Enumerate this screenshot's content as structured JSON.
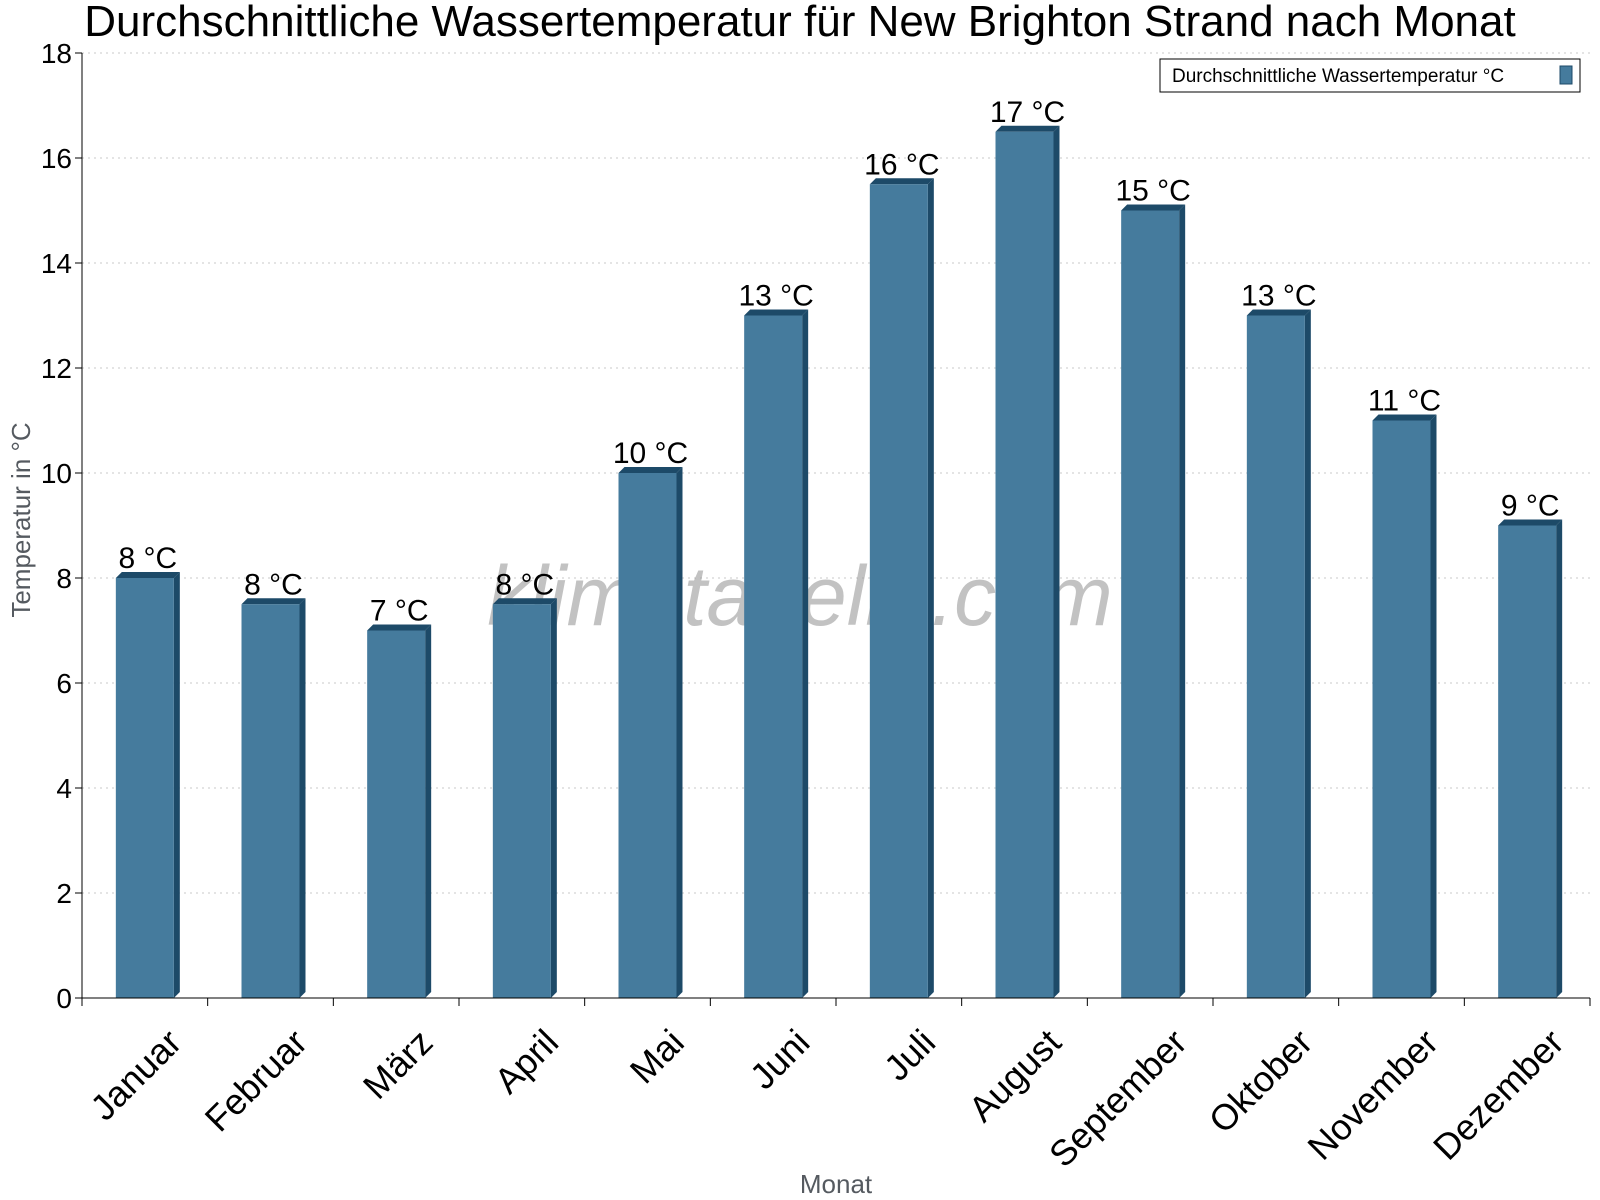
{
  "chart_data": {
    "type": "bar",
    "title": "Durchschnittliche Wassertemperatur für New Brighton Strand nach Monat",
    "xlabel": "Monat",
    "ylabel": "Temperatur in °C",
    "ylim": [
      0,
      18
    ],
    "yticks": [
      "0",
      "2",
      "4",
      "6",
      "8",
      "10",
      "12",
      "14",
      "16",
      "18"
    ],
    "grid": true,
    "legend_position": "top-right",
    "categories": [
      "Januar",
      "Februar",
      "März",
      "April",
      "Mai",
      "Juni",
      "Juli",
      "August",
      "September",
      "Oktober",
      "November",
      "Dezember"
    ],
    "series": [
      {
        "name": "Durchschnittliche Wassertemperatur °C",
        "color": "#457b9d",
        "values": [
          8,
          7.5,
          7,
          7.5,
          10,
          13,
          15.5,
          16.5,
          15,
          13,
          11,
          9
        ],
        "labels": [
          "8 °C",
          "8 °C",
          "7 °C",
          "8 °C",
          "10 °C",
          "13 °C",
          "16 °C",
          "17 °C",
          "15 °C",
          "13 °C",
          "11 °C",
          "9 °C"
        ]
      }
    ],
    "watermark": "klimatabelle.com"
  }
}
